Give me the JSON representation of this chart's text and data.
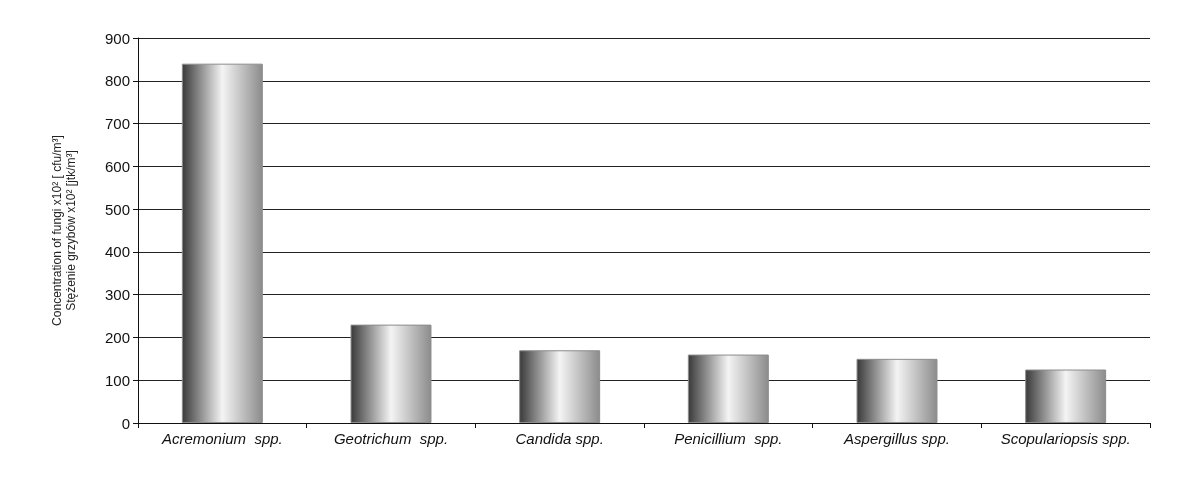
{
  "chart_data": {
    "type": "bar",
    "ylabel": "Concentration of fungi x10² [ cfu/m³]\nStężenie grzybów x10² [jtk/m³]",
    "categories": [
      "Acremonium  spp.",
      "Geotrichum  spp.",
      "Candida spp.",
      "Penicillium  spp.",
      "Aspergillus spp.",
      "Scopulariopsis spp."
    ],
    "values": [
      840,
      230,
      170,
      160,
      150,
      125
    ],
    "color": "#8c8c8c",
    "ylim": [
      0,
      900
    ],
    "yticks": [
      0,
      100,
      200,
      300,
      400,
      500,
      600,
      700,
      800,
      900
    ],
    "grid": "y"
  }
}
